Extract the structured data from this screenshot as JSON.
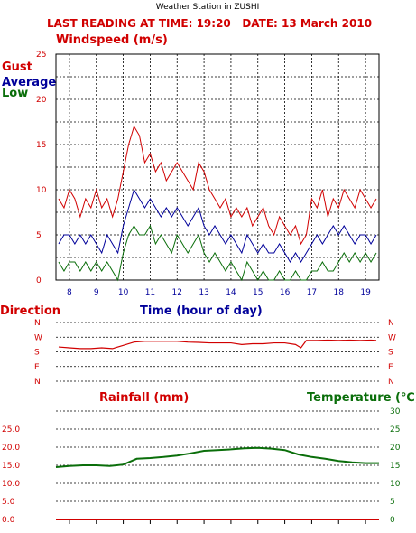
{
  "station_title": "Weather Station in ZUSHI",
  "reading_line": "LAST READING AT TIME: 19:20   DATE: 13 March 2010",
  "colors": {
    "red": "#d10000",
    "blue": "#00009a",
    "green": "#0a6e0a",
    "grid": "#000000"
  },
  "chart_data": [
    {
      "type": "line",
      "title": "Windspeed (m/s)",
      "xlabel": "Time (hour of day)",
      "ylabel": "",
      "xlim": [
        7.5,
        19.5
      ],
      "ylim": [
        0,
        25
      ],
      "x_ticks": [
        8,
        9,
        10,
        11,
        12,
        13,
        14,
        15,
        16,
        17,
        18,
        19
      ],
      "y_ticks": [
        0,
        5,
        10,
        15,
        20,
        25
      ],
      "grid": true,
      "legend_position": "top-left",
      "series": [
        {
          "name": "Gust",
          "color": "#d10000",
          "x": [
            7.6,
            7.8,
            8.0,
            8.2,
            8.4,
            8.6,
            8.8,
            9.0,
            9.2,
            9.4,
            9.6,
            9.8,
            10.0,
            10.2,
            10.4,
            10.6,
            10.8,
            11.0,
            11.2,
            11.4,
            11.6,
            11.8,
            12.0,
            12.2,
            12.4,
            12.6,
            12.8,
            13.0,
            13.2,
            13.4,
            13.6,
            13.8,
            14.0,
            14.2,
            14.4,
            14.6,
            14.8,
            15.0,
            15.2,
            15.4,
            15.6,
            15.8,
            16.0,
            16.2,
            16.4,
            16.6,
            16.8,
            17.0,
            17.2,
            17.4,
            17.6,
            17.8,
            18.0,
            18.2,
            18.4,
            18.6,
            18.8,
            19.0,
            19.2,
            19.4
          ],
          "values": [
            9,
            8,
            10,
            9,
            7,
            9,
            8,
            10,
            8,
            9,
            7,
            9,
            12,
            15,
            17,
            16,
            13,
            14,
            12,
            13,
            11,
            12,
            13,
            12,
            11,
            10,
            13,
            12,
            10,
            9,
            8,
            9,
            7,
            8,
            7,
            8,
            6,
            7,
            8,
            6,
            5,
            7,
            6,
            5,
            6,
            4,
            5,
            9,
            8,
            10,
            7,
            9,
            8,
            10,
            9,
            8,
            10,
            9,
            8,
            9
          ]
        },
        {
          "name": "Average",
          "color": "#00009a",
          "x": [
            7.6,
            7.8,
            8.0,
            8.2,
            8.4,
            8.6,
            8.8,
            9.0,
            9.2,
            9.4,
            9.6,
            9.8,
            10.0,
            10.2,
            10.4,
            10.6,
            10.8,
            11.0,
            11.2,
            11.4,
            11.6,
            11.8,
            12.0,
            12.2,
            12.4,
            12.6,
            12.8,
            13.0,
            13.2,
            13.4,
            13.6,
            13.8,
            14.0,
            14.2,
            14.4,
            14.6,
            14.8,
            15.0,
            15.2,
            15.4,
            15.6,
            15.8,
            16.0,
            16.2,
            16.4,
            16.6,
            16.8,
            17.0,
            17.2,
            17.4,
            17.6,
            17.8,
            18.0,
            18.2,
            18.4,
            18.6,
            18.8,
            19.0,
            19.2,
            19.4
          ],
          "values": [
            4,
            5,
            5,
            4,
            5,
            4,
            5,
            4,
            3,
            5,
            4,
            3,
            6,
            8,
            10,
            9,
            8,
            9,
            8,
            7,
            8,
            7,
            8,
            7,
            6,
            7,
            8,
            6,
            5,
            6,
            5,
            4,
            5,
            4,
            3,
            5,
            4,
            3,
            4,
            3,
            3,
            4,
            3,
            2,
            3,
            2,
            3,
            4,
            5,
            4,
            5,
            6,
            5,
            6,
            5,
            4,
            5,
            5,
            4,
            5
          ]
        },
        {
          "name": "Low",
          "color": "#0a6e0a",
          "x": [
            7.6,
            7.8,
            8.0,
            8.2,
            8.4,
            8.6,
            8.8,
            9.0,
            9.2,
            9.4,
            9.6,
            9.8,
            10.0,
            10.2,
            10.4,
            10.6,
            10.8,
            11.0,
            11.2,
            11.4,
            11.6,
            11.8,
            12.0,
            12.2,
            12.4,
            12.6,
            12.8,
            13.0,
            13.2,
            13.4,
            13.6,
            13.8,
            14.0,
            14.2,
            14.4,
            14.6,
            14.8,
            15.0,
            15.2,
            15.4,
            15.6,
            15.8,
            16.0,
            16.2,
            16.4,
            16.6,
            16.8,
            17.0,
            17.2,
            17.4,
            17.6,
            17.8,
            18.0,
            18.2,
            18.4,
            18.6,
            18.8,
            19.0,
            19.2,
            19.4
          ],
          "values": [
            2,
            1,
            2,
            2,
            1,
            2,
            1,
            2,
            1,
            2,
            1,
            0,
            3,
            5,
            6,
            5,
            5,
            6,
            4,
            5,
            4,
            3,
            5,
            4,
            3,
            4,
            5,
            3,
            2,
            3,
            2,
            1,
            2,
            1,
            0,
            2,
            1,
            0,
            1,
            0,
            0,
            1,
            0,
            0,
            1,
            0,
            0,
            1,
            1,
            2,
            1,
            1,
            2,
            3,
            2,
            3,
            2,
            3,
            2,
            3
          ]
        }
      ]
    },
    {
      "type": "line",
      "title": "Direction",
      "xlabel": "",
      "ylabel": "",
      "xlim": [
        7.5,
        19.5
      ],
      "y_ticks": [
        "N",
        "W",
        "S",
        "E",
        "N"
      ],
      "ylim": [
        0,
        360
      ],
      "grid": true,
      "series": [
        {
          "name": "",
          "color": "#d10000",
          "x": [
            7.6,
            8.0,
            8.4,
            8.8,
            9.2,
            9.6,
            10.0,
            10.4,
            10.8,
            11.2,
            11.6,
            12.0,
            12.4,
            12.8,
            13.2,
            13.6,
            14.0,
            14.4,
            14.8,
            15.2,
            15.6,
            16.0,
            16.4,
            16.6,
            16.8,
            17.2,
            17.6,
            18.0,
            18.4,
            18.8,
            19.2,
            19.4
          ],
          "values": [
            210,
            205,
            200,
            200,
            205,
            200,
            220,
            240,
            245,
            245,
            245,
            245,
            240,
            238,
            235,
            235,
            235,
            225,
            230,
            230,
            235,
            235,
            225,
            205,
            250,
            250,
            252,
            250,
            252,
            250,
            252,
            250
          ]
        }
      ]
    },
    {
      "type": "line",
      "title": "",
      "xlabel": "",
      "ylabel": "",
      "xlim": [
        7.5,
        19.5
      ],
      "ylim": [
        0,
        30
      ],
      "y_ticks_left": [
        "0.0",
        "5.0",
        "10.0",
        "15.0",
        "20.0",
        "25.0"
      ],
      "y_ticks_right": [
        0,
        5,
        10,
        15,
        20,
        25,
        30
      ],
      "grid": true,
      "series": [
        {
          "name": "Rainfall (mm)",
          "color": "#d10000",
          "x": [
            7.5,
            19.5
          ],
          "values": [
            0.0,
            0.0
          ]
        },
        {
          "name": "Temperature (℃)",
          "color": "#0a6e0a",
          "x": [
            7.5,
            8.0,
            8.5,
            9.0,
            9.5,
            10.0,
            10.5,
            11.0,
            11.5,
            12.0,
            12.5,
            13.0,
            13.5,
            14.0,
            14.5,
            15.0,
            15.5,
            16.0,
            16.5,
            17.0,
            17.5,
            18.0,
            18.5,
            19.0,
            19.5
          ],
          "values": [
            14.5,
            14.8,
            15.0,
            15.0,
            14.8,
            15.2,
            16.8,
            17.0,
            17.3,
            17.7,
            18.3,
            19.0,
            19.2,
            19.4,
            19.7,
            19.8,
            19.6,
            19.2,
            18.0,
            17.3,
            16.8,
            16.2,
            15.8,
            15.6,
            15.6
          ]
        }
      ]
    }
  ]
}
